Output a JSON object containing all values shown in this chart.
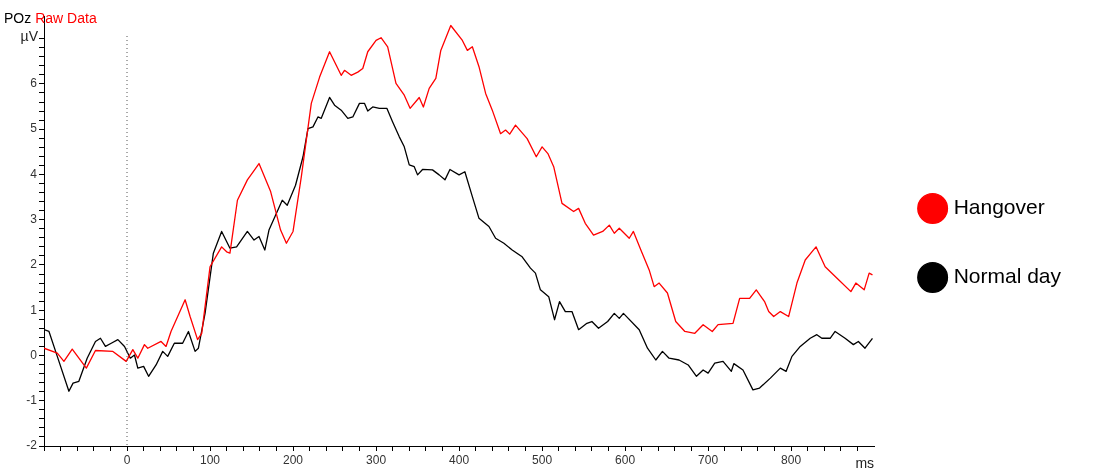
{
  "chart_data": {
    "type": "line",
    "title": "POz",
    "subtitle": "Raw Data",
    "xlabel": "ms",
    "ylabel": "µV",
    "xlim": [
      -100,
      900
    ],
    "ylim": [
      -2,
      7.5
    ],
    "xticks": [
      {
        "value": -100,
        "label": null
      },
      {
        "value": -80,
        "label": null
      },
      {
        "value": -60,
        "label": null
      },
      {
        "value": -40,
        "label": null
      },
      {
        "value": -20,
        "label": null
      },
      0,
      {
        "value": 20,
        "label": null
      },
      {
        "value": 40,
        "label": null
      },
      {
        "value": 60,
        "label": null
      },
      {
        "value": 80,
        "label": null
      },
      100,
      {
        "value": 120,
        "label": null
      },
      {
        "value": 140,
        "label": null
      },
      {
        "value": 160,
        "label": null
      },
      {
        "value": 180,
        "label": null
      },
      200,
      {
        "value": 220,
        "label": null
      },
      {
        "value": 240,
        "label": null
      },
      {
        "value": 260,
        "label": null
      },
      {
        "value": 280,
        "label": null
      },
      300,
      {
        "value": 320,
        "label": null
      },
      {
        "value": 340,
        "label": null
      },
      {
        "value": 360,
        "label": null
      },
      {
        "value": 380,
        "label": null
      },
      400,
      {
        "value": 420,
        "label": null
      },
      {
        "value": 440,
        "label": null
      },
      {
        "value": 460,
        "label": null
      },
      {
        "value": 480,
        "label": null
      },
      500,
      {
        "value": 520,
        "label": null
      },
      {
        "value": 540,
        "label": null
      },
      {
        "value": 560,
        "label": null
      },
      {
        "value": 580,
        "label": null
      },
      600,
      {
        "value": 620,
        "label": null
      },
      {
        "value": 640,
        "label": null
      },
      {
        "value": 660,
        "label": null
      },
      {
        "value": 680,
        "label": null
      },
      700,
      {
        "value": 720,
        "label": null
      },
      {
        "value": 740,
        "label": null
      },
      {
        "value": 760,
        "label": null
      },
      {
        "value": 780,
        "label": null
      },
      800,
      {
        "value": 820,
        "label": null
      },
      {
        "value": 840,
        "label": null
      },
      {
        "value": 860,
        "label": null
      },
      {
        "value": 880,
        "label": null
      }
    ],
    "yticks": [
      -2,
      {
        "value": -1.8,
        "label": null
      },
      {
        "value": -1.6,
        "label": null
      },
      {
        "value": -1.4,
        "label": null
      },
      {
        "value": -1.2,
        "label": null
      },
      -1,
      {
        "value": -0.8,
        "label": null
      },
      {
        "value": -0.6,
        "label": null
      },
      {
        "value": -0.4,
        "label": null
      },
      {
        "value": -0.2,
        "label": null
      },
      0,
      {
        "value": 0.2,
        "label": null
      },
      {
        "value": 0.4,
        "label": null
      },
      {
        "value": 0.6,
        "label": null
      },
      {
        "value": 0.8,
        "label": null
      },
      1,
      {
        "value": 1.2,
        "label": null
      },
      {
        "value": 1.4,
        "label": null
      },
      {
        "value": 1.6,
        "label": null
      },
      {
        "value": 1.8,
        "label": null
      },
      2,
      {
        "value": 2.2,
        "label": null
      },
      {
        "value": 2.4,
        "label": null
      },
      {
        "value": 2.6,
        "label": null
      },
      {
        "value": 2.8,
        "label": null
      },
      3,
      {
        "value": 3.2,
        "label": null
      },
      {
        "value": 3.4,
        "label": null
      },
      {
        "value": 3.6,
        "label": null
      },
      {
        "value": 3.8,
        "label": null
      },
      4,
      {
        "value": 4.2,
        "label": null
      },
      {
        "value": 4.4,
        "label": null
      },
      {
        "value": 4.6,
        "label": null
      },
      {
        "value": 4.8,
        "label": null
      },
      5,
      {
        "value": 5.2,
        "label": null
      },
      {
        "value": 5.4,
        "label": null
      },
      {
        "value": 5.6,
        "label": null
      },
      {
        "value": 5.8,
        "label": null
      },
      6,
      {
        "value": 6.2,
        "label": null
      },
      {
        "value": 6.4,
        "label": null
      },
      {
        "value": 6.6,
        "label": null
      },
      {
        "value": 6.8,
        "label": null
      },
      {
        "value": 7,
        "label": null
      }
    ],
    "grid": false,
    "legend": "right",
    "marker": "none",
    "line_style": "solid",
    "ref_lines": [
      {
        "axis": "x",
        "value": 0,
        "color": "#555555",
        "line_style": "dotted"
      }
    ],
    "series": [
      {
        "name": "Hangover",
        "color": "#ff0000",
        "x": [
          -100,
          -84,
          -76,
          -66,
          -49,
          -38,
          -17,
          -1,
          7,
          13,
          21,
          25,
          41,
          47,
          53,
          70,
          76,
          85,
          90,
          100,
          114,
          120,
          124,
          133,
          145,
          159,
          173,
          185,
          192,
          200,
          210,
          222,
          232,
          244,
          258,
          262,
          270,
          278,
          284,
          290,
          300,
          306,
          314,
          324,
          334,
          341,
          352,
          357,
          364,
          372,
          378,
          390,
          404,
          410,
          416,
          424,
          432,
          440,
          450,
          456,
          461,
          468,
          482,
          493,
          500,
          507,
          514,
          524,
          538,
          544,
          552,
          562,
          573,
          581,
          587,
          593,
          605,
          610,
          619,
          629,
          635,
          641,
          651,
          661,
          672,
          684,
          694,
          705,
          712,
          730,
          738,
          750,
          758,
          768,
          773,
          779,
          787,
          797,
          807,
          817,
          830,
          841,
          855,
          872,
          878,
          888,
          894,
          898
        ],
        "values": [
          0.16,
          0.05,
          -0.13,
          0.14,
          -0.28,
          0.11,
          0.09,
          -0.13,
          0.13,
          -0.06,
          0.24,
          0.16,
          0.31,
          0.2,
          0.53,
          1.23,
          0.86,
          0.35,
          0.49,
          1.96,
          2.4,
          2.29,
          2.26,
          3.43,
          3.88,
          4.24,
          3.62,
          2.77,
          2.48,
          2.74,
          3.95,
          5.57,
          6.15,
          6.71,
          6.19,
          6.3,
          6.19,
          6.26,
          6.34,
          6.71,
          6.96,
          7.02,
          6.82,
          6.01,
          5.75,
          5.46,
          5.7,
          5.49,
          5.9,
          6.12,
          6.74,
          7.29,
          6.96,
          6.74,
          6.82,
          6.38,
          5.79,
          5.42,
          4.9,
          4.98,
          4.89,
          5.09,
          4.79,
          4.39,
          4.61,
          4.46,
          4.17,
          3.36,
          3.18,
          3.25,
          2.92,
          2.66,
          2.74,
          2.88,
          2.7,
          2.81,
          2.59,
          2.74,
          2.33,
          1.89,
          1.52,
          1.6,
          1.38,
          0.75,
          0.53,
          0.49,
          0.68,
          0.53,
          0.68,
          0.71,
          1.26,
          1.26,
          1.45,
          1.19,
          0.97,
          0.86,
          0.97,
          0.86,
          1.6,
          2.11,
          2.4,
          1.96,
          1.71,
          1.41,
          1.6,
          1.45,
          1.82,
          1.78
        ]
      },
      {
        "name": "Normal day",
        "color": "#000000",
        "x": [
          -100,
          -94,
          -84,
          -70,
          -65,
          -58,
          -48,
          -38,
          -32,
          -26,
          -19,
          -11,
          -3,
          4,
          9,
          13,
          20,
          26,
          35,
          43,
          49,
          57,
          67,
          74,
          82,
          86,
          94,
          104,
          114,
          124,
          132,
          145,
          153,
          159,
          166,
          171,
          187,
          193,
          203,
          212,
          218,
          224,
          230,
          234,
          244,
          250,
          258,
          266,
          272,
          280,
          286,
          290,
          296,
          304,
          313,
          320,
          328,
          334,
          340,
          346,
          350,
          356,
          368,
          376,
          383,
          389,
          400,
          407,
          416,
          424,
          436,
          444,
          454,
          464,
          476,
          486,
          492,
          498,
          508,
          515,
          521,
          528,
          536,
          544,
          554,
          560,
          568,
          579,
          587,
          593,
          598,
          617,
          627,
          637,
          645,
          653,
          665,
          676,
          686,
          694,
          700,
          708,
          718,
          728,
          731,
          742,
          754,
          762,
          775,
          787,
          794,
          801,
          811,
          823,
          831,
          837,
          847,
          853,
          865,
          875,
          881,
          889,
          898
        ],
        "values": [
          0.57,
          0.53,
          -0.02,
          -0.79,
          -0.61,
          -0.57,
          -0.06,
          0.31,
          0.38,
          0.2,
          0.27,
          0.35,
          0.2,
          -0.06,
          0.01,
          -0.28,
          -0.24,
          -0.46,
          -0.21,
          0.09,
          -0.02,
          0.27,
          0.27,
          0.53,
          0.09,
          0.16,
          0.93,
          2.26,
          2.74,
          2.37,
          2.4,
          2.74,
          2.55,
          2.63,
          2.33,
          2.77,
          3.43,
          3.32,
          3.76,
          4.39,
          5.01,
          5.05,
          5.27,
          5.24,
          5.7,
          5.53,
          5.42,
          5.24,
          5.27,
          5.57,
          5.57,
          5.4,
          5.49,
          5.46,
          5.46,
          5.16,
          4.83,
          4.61,
          4.21,
          4.17,
          3.99,
          4.11,
          4.1,
          3.99,
          3.88,
          4.11,
          3.99,
          4.06,
          3.51,
          3.03,
          2.85,
          2.59,
          2.48,
          2.33,
          2.18,
          1.93,
          1.82,
          1.45,
          1.3,
          0.79,
          1.19,
          0.97,
          0.97,
          0.57,
          0.71,
          0.75,
          0.6,
          0.75,
          0.93,
          0.82,
          0.93,
          0.57,
          0.16,
          -0.1,
          0.09,
          -0.06,
          -0.1,
          -0.21,
          -0.46,
          -0.32,
          -0.39,
          -0.17,
          -0.13,
          -0.35,
          -0.18,
          -0.32,
          -0.76,
          -0.72,
          -0.5,
          -0.28,
          -0.35,
          -0.02,
          0.2,
          0.38,
          0.46,
          0.38,
          0.38,
          0.53,
          0.38,
          0.24,
          0.31,
          0.16,
          0.38
        ]
      }
    ]
  }
}
